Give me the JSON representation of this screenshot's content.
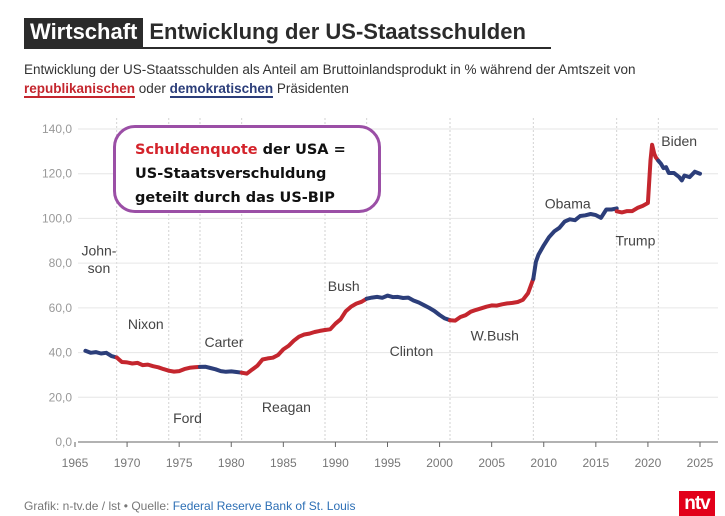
{
  "header": {
    "section": "Wirtschaft",
    "title": "Entwicklung der US-Staatsschulden"
  },
  "subtitle": {
    "before": "Entwicklung der US-Staatsschulden als Anteil am Bruttoinlandsprodukt in % während der Amtszeit von ",
    "rep": "republikanischen",
    "middle": " oder ",
    "dem": "demokratischen",
    "after": " Präsidenten"
  },
  "callout": {
    "highlight": "Schuldenquote",
    "line1_rest": " der USA =",
    "line2": "US-Staatsverschuldung",
    "line3": "geteilt durch das US-BIP"
  },
  "footer": {
    "credit": "Grafik: n-tv.de / lst • Quelle: ",
    "source": "Federal Reserve Bank of St. Louis",
    "logo": "ntv"
  },
  "colors": {
    "republican": "#c4262e",
    "democratic": "#2c3e7a",
    "callout_border": "#9b4fa6"
  },
  "chart_data": {
    "type": "line",
    "title": "Entwicklung der US-Staatsschulden",
    "xlabel": "",
    "ylabel": "",
    "xlim": [
      1964,
      2026
    ],
    "ylim": [
      0,
      140
    ],
    "x_ticks": [
      "1965",
      "1970",
      "1975",
      "1980",
      "1985",
      "1990",
      "1995",
      "2000",
      "2005",
      "2010",
      "2015",
      "2020",
      "2025"
    ],
    "y_ticks": [
      "0,0",
      "20,0",
      "40,0",
      "60,0",
      "80,0",
      "100,0",
      "120,0",
      "140,0"
    ],
    "grid_years": [
      1969,
      1974,
      1977,
      1981,
      1989,
      1993,
      2001,
      2009,
      2017,
      2021
    ],
    "series": [
      {
        "name": "Johnson",
        "party": "dem",
        "points": [
          [
            1966,
            40.8
          ],
          [
            1966.5,
            39.9
          ],
          [
            1967,
            40.2
          ],
          [
            1967.5,
            39.6
          ],
          [
            1968,
            39.9
          ],
          [
            1968.5,
            38.4
          ],
          [
            1969,
            37.8
          ]
        ]
      },
      {
        "name": "Nixon",
        "party": "rep",
        "points": [
          [
            1969,
            37.8
          ],
          [
            1969.5,
            35.8
          ],
          [
            1970,
            35.6
          ],
          [
            1970.5,
            35.1
          ],
          [
            1971,
            35.4
          ],
          [
            1971.5,
            34.4
          ],
          [
            1972,
            34.6
          ],
          [
            1972.5,
            33.9
          ],
          [
            1973,
            33.4
          ],
          [
            1973.5,
            32.6
          ],
          [
            1974,
            31.9
          ]
        ]
      },
      {
        "name": "Ford",
        "party": "rep",
        "points": [
          [
            1974,
            31.9
          ],
          [
            1974.5,
            31.5
          ],
          [
            1975,
            31.7
          ],
          [
            1975.5,
            32.6
          ],
          [
            1976,
            33.2
          ],
          [
            1976.5,
            33.4
          ],
          [
            1977,
            33.6
          ]
        ]
      },
      {
        "name": "Carter",
        "party": "dem",
        "points": [
          [
            1977,
            33.6
          ],
          [
            1977.5,
            33.7
          ],
          [
            1978,
            33.1
          ],
          [
            1978.5,
            32.5
          ],
          [
            1979,
            31.7
          ],
          [
            1979.5,
            31.4
          ],
          [
            1980,
            31.6
          ],
          [
            1980.5,
            31.3
          ],
          [
            1981,
            31.0
          ]
        ]
      },
      {
        "name": "Reagan",
        "party": "rep",
        "points": [
          [
            1981,
            31.0
          ],
          [
            1981.5,
            30.6
          ],
          [
            1982,
            32.4
          ],
          [
            1982.5,
            34.1
          ],
          [
            1983,
            36.9
          ],
          [
            1983.5,
            37.4
          ],
          [
            1984,
            37.7
          ],
          [
            1984.5,
            38.9
          ],
          [
            1985,
            41.4
          ],
          [
            1985.5,
            43.0
          ],
          [
            1986,
            45.3
          ],
          [
            1986.5,
            47.1
          ],
          [
            1987,
            48.1
          ],
          [
            1987.5,
            48.5
          ],
          [
            1988,
            49.2
          ],
          [
            1988.5,
            49.7
          ],
          [
            1989,
            50.1
          ]
        ]
      },
      {
        "name": "Bush",
        "party": "rep",
        "points": [
          [
            1989,
            50.1
          ],
          [
            1989.5,
            50.4
          ],
          [
            1990,
            52.9
          ],
          [
            1990.5,
            54.9
          ],
          [
            1991,
            58.5
          ],
          [
            1991.5,
            60.5
          ],
          [
            1992,
            61.9
          ],
          [
            1992.5,
            62.7
          ],
          [
            1993,
            64.1
          ]
        ]
      },
      {
        "name": "Clinton",
        "party": "dem",
        "points": [
          [
            1993,
            64.1
          ],
          [
            1993.5,
            64.6
          ],
          [
            1994,
            64.9
          ],
          [
            1994.5,
            64.5
          ],
          [
            1995,
            65.5
          ],
          [
            1995.5,
            64.8
          ],
          [
            1996,
            64.9
          ],
          [
            1996.5,
            64.4
          ],
          [
            1997,
            64.6
          ],
          [
            1997.5,
            63.3
          ],
          [
            1998,
            62.4
          ],
          [
            1998.5,
            61.2
          ],
          [
            1999,
            60.0
          ],
          [
            1999.5,
            58.6
          ],
          [
            2000,
            56.8
          ],
          [
            2000.5,
            55.3
          ],
          [
            2001,
            54.5
          ]
        ]
      },
      {
        "name": "W.Bush",
        "party": "rep",
        "points": [
          [
            2001,
            54.5
          ],
          [
            2001.5,
            54.3
          ],
          [
            2002,
            55.9
          ],
          [
            2002.5,
            56.7
          ],
          [
            2003,
            58.3
          ],
          [
            2003.5,
            59.1
          ],
          [
            2004,
            59.8
          ],
          [
            2004.5,
            60.5
          ],
          [
            2005,
            61.1
          ],
          [
            2005.5,
            61.0
          ],
          [
            2006,
            61.6
          ],
          [
            2006.5,
            62.0
          ],
          [
            2007,
            62.2
          ],
          [
            2007.5,
            62.6
          ],
          [
            2008,
            63.6
          ],
          [
            2008.5,
            66.6
          ],
          [
            2009,
            73.0
          ]
        ]
      },
      {
        "name": "Obama",
        "party": "dem",
        "points": [
          [
            2009,
            73.0
          ],
          [
            2009.25,
            80.6
          ],
          [
            2009.5,
            83.8
          ],
          [
            2010,
            88.0
          ],
          [
            2010.5,
            91.6
          ],
          [
            2011,
            94.2
          ],
          [
            2011.5,
            95.8
          ],
          [
            2012,
            98.6
          ],
          [
            2012.5,
            99.6
          ],
          [
            2013,
            99.2
          ],
          [
            2013.5,
            101.1
          ],
          [
            2014,
            101.4
          ],
          [
            2014.5,
            102.0
          ],
          [
            2015,
            101.5
          ],
          [
            2015.5,
            100.3
          ],
          [
            2016,
            104.0
          ],
          [
            2016.5,
            104.0
          ],
          [
            2017,
            104.5
          ]
        ]
      },
      {
        "name": "Trump",
        "party": "rep",
        "points": [
          [
            2017,
            103.2
          ],
          [
            2017.5,
            102.7
          ],
          [
            2018,
            103.3
          ],
          [
            2018.5,
            103.3
          ],
          [
            2019,
            104.7
          ],
          [
            2019.5,
            105.6
          ],
          [
            2020,
            106.9
          ],
          [
            2020.25,
            126.0
          ],
          [
            2020.4,
            133.0
          ],
          [
            2020.6,
            129.0
          ],
          [
            2020.75,
            127.4
          ],
          [
            2021,
            125.8
          ]
        ]
      },
      {
        "name": "Biden",
        "party": "dem",
        "points": [
          [
            2021,
            125.8
          ],
          [
            2021.25,
            124.5
          ],
          [
            2021.5,
            122.5
          ],
          [
            2021.75,
            122.9
          ],
          [
            2022,
            120.3
          ],
          [
            2022.5,
            120.3
          ],
          [
            2022.75,
            119.4
          ],
          [
            2023,
            118.5
          ],
          [
            2023.25,
            117.0
          ],
          [
            2023.5,
            119.2
          ],
          [
            2024,
            118.5
          ],
          [
            2024.5,
            120.9
          ],
          [
            2025,
            120.0
          ]
        ]
      }
    ],
    "annotations": [
      {
        "text": "John-",
        "x": 1967.3,
        "y": 83.5
      },
      {
        "text": "son",
        "x": 1967.3,
        "y": 75.5
      },
      {
        "text": "Nixon",
        "x": 1971.8,
        "y": 50.5
      },
      {
        "text": "Ford",
        "x": 1975.8,
        "y": 8.5
      },
      {
        "text": "Carter",
        "x": 1979.3,
        "y": 42.5
      },
      {
        "text": "Reagan",
        "x": 1985.3,
        "y": 13.5
      },
      {
        "text": "Bush",
        "x": 1990.8,
        "y": 67.5
      },
      {
        "text": "Clinton",
        "x": 1997.3,
        "y": 38.5
      },
      {
        "text": "W.Bush",
        "x": 2005.3,
        "y": 45.5
      },
      {
        "text": "Obama",
        "x": 2012.3,
        "y": 104.5
      },
      {
        "text": "Trump",
        "x": 2018.8,
        "y": 88.0
      },
      {
        "text": "Biden",
        "x": 2023.0,
        "y": 132.5
      }
    ]
  }
}
